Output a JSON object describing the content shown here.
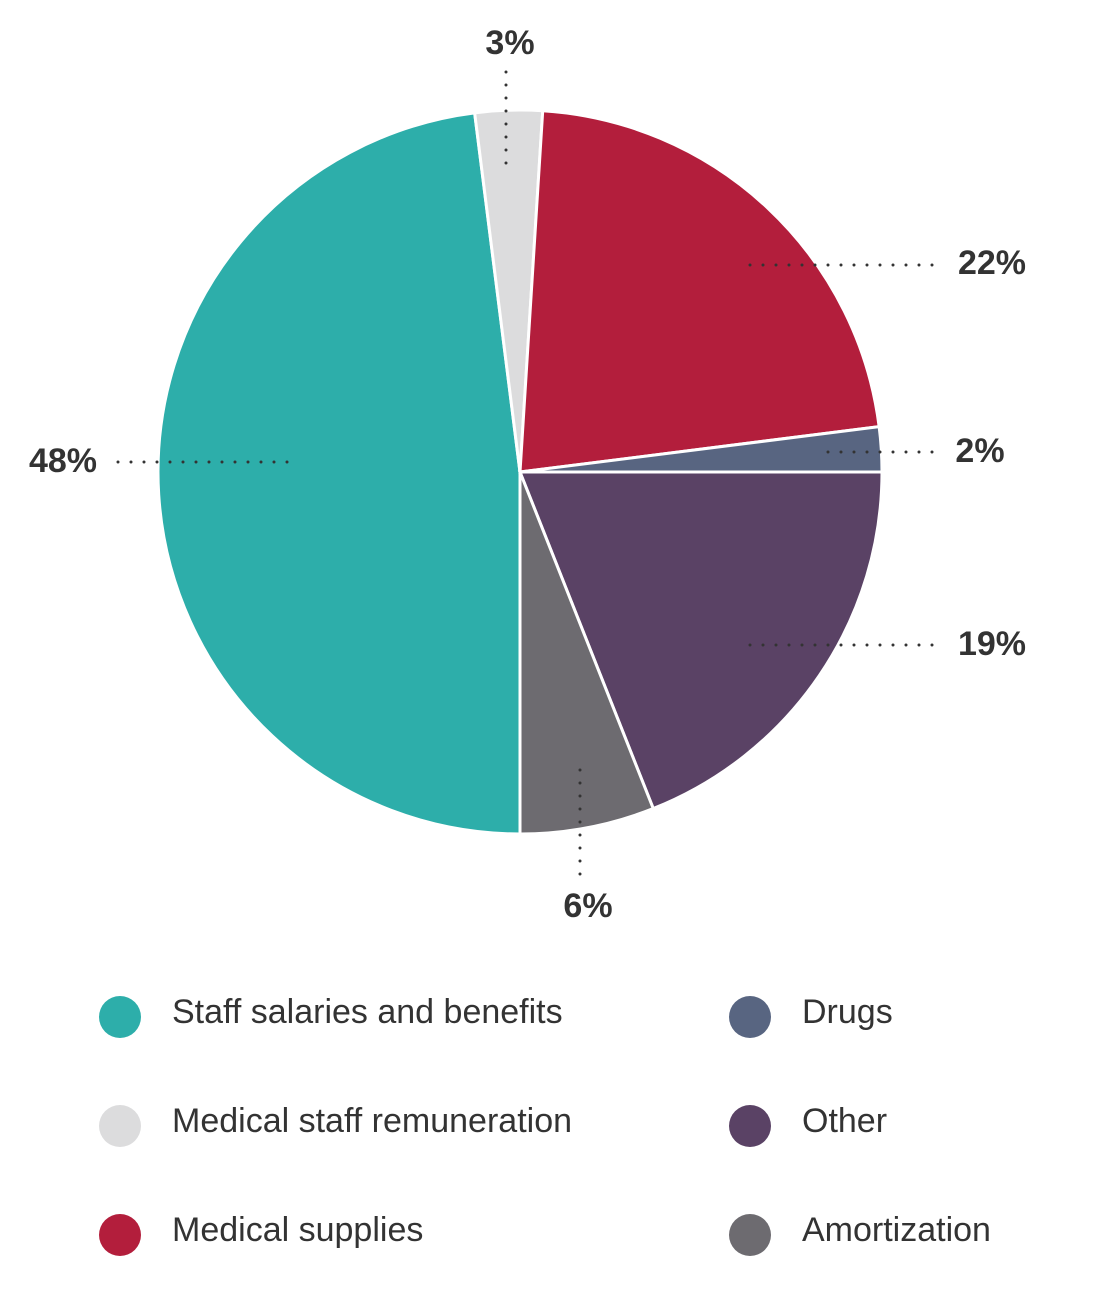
{
  "chart_data": {
    "type": "pie",
    "categories": [
      "Staff salaries and benefits",
      "Medical staff remuneration",
      "Medical supplies",
      "Drugs",
      "Other",
      "Amortization"
    ],
    "values": [
      48,
      3,
      22,
      2,
      19,
      6
    ],
    "value_labels": [
      "48%",
      "3%",
      "22%",
      "2%",
      "19%",
      "6%"
    ],
    "colors": [
      "#2daeaa",
      "#dcdcdd",
      "#b31e3c",
      "#586581",
      "#5a4265",
      "#6d6b70"
    ]
  }
}
